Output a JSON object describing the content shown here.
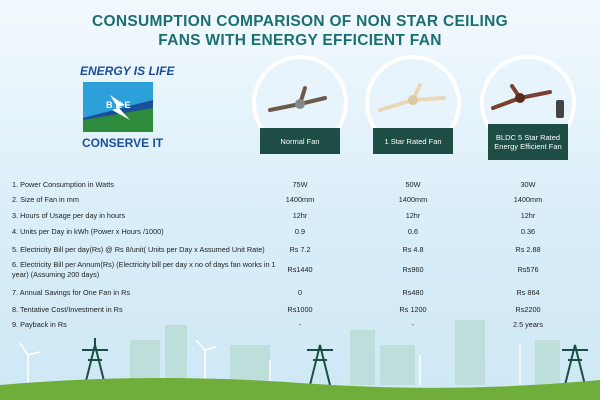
{
  "header": {
    "title_lines": [
      "CONSUMPTION COMPARISON OF NON STAR CEILING",
      "FANS WITH ENERGY EFFICIENT FAN"
    ]
  },
  "logo": {
    "top": "ENERGY IS LIFE",
    "middle": "BEE",
    "bottom": "CONSERVE IT"
  },
  "fans": [
    "Normal Fan",
    "1 Star Rated Fan",
    "BLDC 5 Star Rated Energy Efficient Fan"
  ],
  "table": {
    "rows": [
      [
        "1. Power Consumption in Watts",
        "75W",
        "50W",
        "30W"
      ],
      [
        "2. Size of Fan in mm",
        "1400mm",
        "1400mm",
        "1400mm"
      ],
      [
        "3. Hours of Usage per day in hours",
        "12hr",
        "12hr",
        "12hr"
      ],
      [
        "4. Units per Day in kWh (Power x Hours /1000)",
        "0.9",
        "0.6",
        "0.36"
      ],
      [
        "5. Electricity Bill per day(Rs) @ Rs 8/unit( Units per Day x Assumed Unit Rate)",
        "Rs 7.2",
        "Rs 4.8",
        "Rs 2.88"
      ],
      [
        "6. Electricity Bill per Annum(Rs) (Electricity bill per day x no  of days fan works in 1 year) (Assuming 200 days)",
        "Rs1440",
        "Rs960",
        "Rs576"
      ],
      [
        "7. Annual Savings for One Fan in Rs",
        "0",
        "Rs480",
        "Rs 864"
      ],
      [
        "8. Tentative Cost/Investment in Rs",
        "Rs1000",
        "Rs 1200",
        "Rs2200"
      ],
      [
        "9. Payback in Rs",
        "-",
        "-",
        "2.5 years"
      ]
    ]
  }
}
